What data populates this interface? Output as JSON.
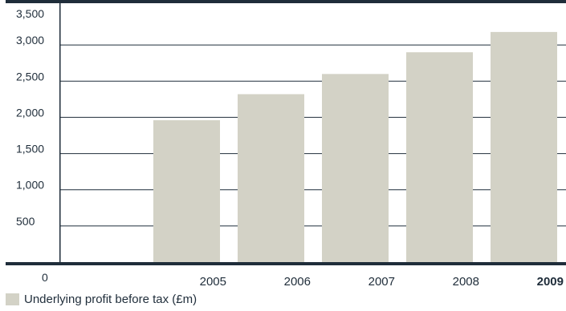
{
  "chart_data": {
    "type": "bar",
    "categories": [
      "",
      "2005",
      "2006",
      "2007",
      "2008",
      "2009"
    ],
    "values": [
      null,
      1960,
      2320,
      2600,
      2900,
      3180
    ],
    "highlight_category": "2009",
    "yticks": [
      "500",
      "1,000",
      "1,500",
      "2,000",
      "2,500",
      "3,000",
      "3,500"
    ],
    "y_zero_label": "0",
    "ylim": [
      0,
      3500
    ],
    "grid": true,
    "legend": {
      "label": "Underlying profit before tax (£m)",
      "placement": "bottom-left"
    },
    "colors": {
      "bar": "#d3d2c6",
      "axis": "#1f2d3a",
      "grid": "#1f2d3a"
    }
  }
}
